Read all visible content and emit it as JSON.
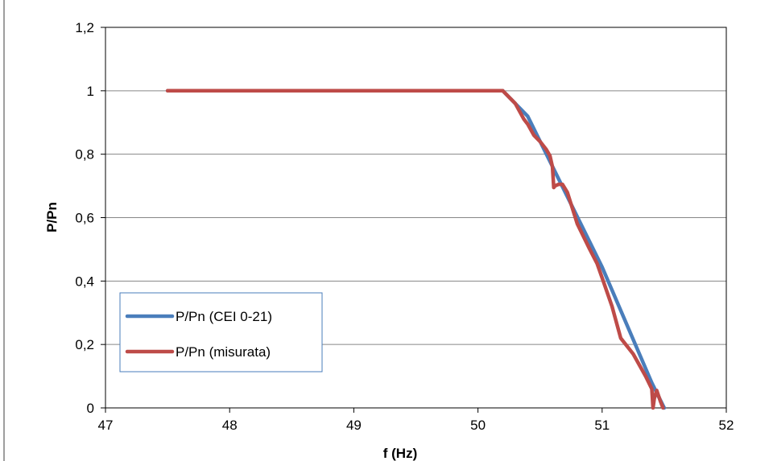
{
  "chart_data": {
    "type": "line",
    "title": "",
    "xlabel": "f (Hz)",
    "ylabel": "P/Pn",
    "xlim": [
      47,
      52
    ],
    "ylim": [
      0,
      1.2
    ],
    "x_ticks": [
      47,
      48,
      49,
      50,
      51,
      52
    ],
    "x_tick_labels": [
      "47",
      "48",
      "49",
      "50",
      "51",
      "52"
    ],
    "y_ticks": [
      0,
      0.2,
      0.4,
      0.6,
      0.8,
      1,
      1.2
    ],
    "y_tick_labels": [
      "0",
      "0,2",
      "0,4",
      "0,6",
      "0,8",
      "1",
      "1,2"
    ],
    "grid": "horizontal",
    "legend_position": "bottom-left",
    "series": [
      {
        "name": "P/Pn (CEI 0-21)",
        "color": "#4a7ebb",
        "points": [
          [
            47.5,
            1
          ],
          [
            50.2,
            1
          ],
          [
            50.4,
            0.92
          ],
          [
            51.0,
            0.444
          ],
          [
            51.4,
            0.079
          ],
          [
            51.5,
            0
          ]
        ]
      },
      {
        "name": "P/Pn (misurata)",
        "color": "#be4b48",
        "points": [
          [
            47.5,
            1
          ],
          [
            50.2,
            1
          ],
          [
            50.3,
            0.96
          ],
          [
            50.37,
            0.91
          ],
          [
            50.4,
            0.895
          ],
          [
            50.45,
            0.86
          ],
          [
            50.5,
            0.84
          ],
          [
            50.55,
            0.815
          ],
          [
            50.58,
            0.795
          ],
          [
            50.6,
            0.76
          ],
          [
            50.61,
            0.695
          ],
          [
            50.62,
            0.7
          ],
          [
            50.65,
            0.705
          ],
          [
            50.68,
            0.705
          ],
          [
            50.72,
            0.68
          ],
          [
            50.8,
            0.58
          ],
          [
            50.9,
            0.5
          ],
          [
            50.96,
            0.455
          ],
          [
            51.0,
            0.41
          ],
          [
            51.08,
            0.32
          ],
          [
            51.15,
            0.22
          ],
          [
            51.25,
            0.17
          ],
          [
            51.35,
            0.1
          ],
          [
            51.4,
            0.06
          ],
          [
            51.41,
            0.0
          ],
          [
            51.42,
            0.03
          ],
          [
            51.44,
            0.055
          ],
          [
            51.47,
            0.02
          ],
          [
            51.49,
            0.0
          ]
        ]
      }
    ]
  }
}
